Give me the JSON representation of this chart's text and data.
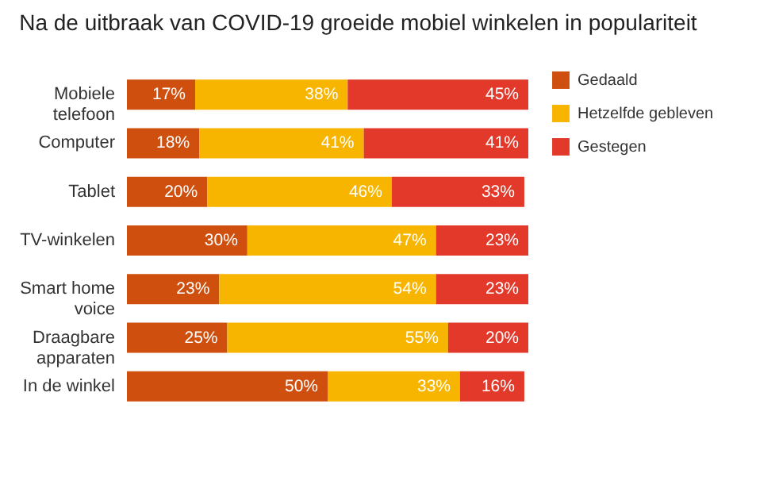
{
  "chart_data": {
    "type": "bar",
    "orientation": "horizontal",
    "stacked": true,
    "title": "Na de uitbraak van COVID-19 groeide mobiel winkelen in populariteit",
    "categories": [
      "Mobiele\ntelefoon",
      "Computer",
      "Tablet",
      "TV-winkelen",
      "Smart home\nvoice",
      "Draagbare\napparaten",
      "In de winkel"
    ],
    "series": [
      {
        "name": "Gedaald",
        "color": "#cf4f0f",
        "values": [
          17,
          18,
          20,
          30,
          23,
          25,
          50
        ],
        "value_labels": [
          "17%",
          "18%",
          "20%",
          "30%",
          "23%",
          "25%",
          "50%"
        ]
      },
      {
        "name": "Hetzelfde gebleven",
        "color": "#f7b500",
        "values": [
          38,
          41,
          46,
          47,
          54,
          55,
          33
        ],
        "value_labels": [
          "38%",
          "41%",
          "46%",
          "47%",
          "54%",
          "55%",
          "33%"
        ]
      },
      {
        "name": "Gestegen",
        "color": "#e2392b",
        "values": [
          45,
          41,
          33,
          23,
          23,
          20,
          16
        ],
        "value_labels": [
          "45%",
          "41%",
          "33%",
          "23%",
          "23%",
          "20%",
          "16%"
        ]
      }
    ],
    "legend": "top right"
  }
}
